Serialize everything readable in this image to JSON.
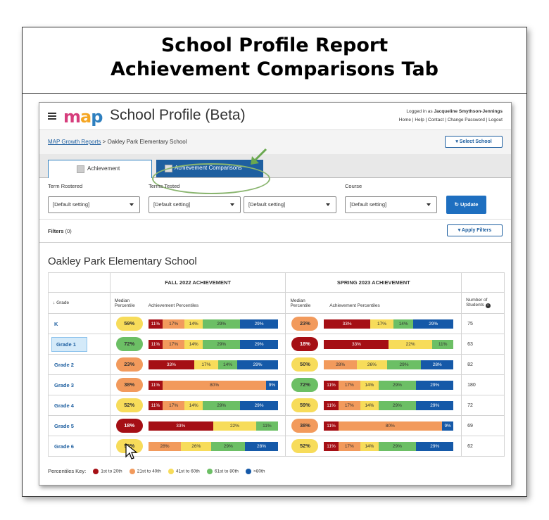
{
  "banner": {
    "line1": "School Profile Report",
    "line2": "Achievement Comparisons Tab"
  },
  "header": {
    "logo": {
      "m": "m",
      "a": "a",
      "p": "p"
    },
    "title": "School Profile (Beta)",
    "logged_in_prefix": "Logged in as",
    "user": "Jacqueline Smythson-Jennings",
    "links": "Home | Help | Contact | Change Password | Logout"
  },
  "breadcrumb": {
    "root": "MAP Growth Reports",
    "sep": ">",
    "current": "Oakley Park Elementary School"
  },
  "select_school_label": "Select School",
  "tabs": {
    "achievement": "Achievement",
    "comparisons": "Achievement Comparisons"
  },
  "filters": {
    "term_rostered_label": "Term Rostered",
    "terms_tested_label": "Terms Tested",
    "course_label": "Course",
    "term_rostered_value": "[Default setting]",
    "terms_tested_1": "[Default setting]",
    "terms_tested_2": "[Default setting]",
    "course_value": "[Default setting]",
    "update_label": "Update",
    "filters_label": "Filters",
    "filters_count": "(0)",
    "apply_label": "Apply Filters"
  },
  "school_name": "Oakley Park Elementary School",
  "table": {
    "fall_header": "FALL 2022 ACHIEVEMENT",
    "spring_header": "SPRING 2023 ACHIEVEMENT",
    "grade_header": "Grade",
    "median_header": "Median Percentile",
    "ach_header": "Achievement Percentiles",
    "num_header": "Number of Students",
    "rows": [
      {
        "grade": "K",
        "fall_median": "59%",
        "fall_bar": [
          11,
          17,
          14,
          29,
          29
        ],
        "spring_median": "23%",
        "spring_bar": [
          33,
          0,
          17,
          14,
          29
        ],
        "n": "75"
      },
      {
        "grade": "Grade 1",
        "fall_median": "72%",
        "fall_bar": [
          11,
          17,
          14,
          29,
          29
        ],
        "spring_median": "18%",
        "spring_bar": [
          33,
          0,
          22,
          11,
          0
        ],
        "n": "63"
      },
      {
        "grade": "Grade 2",
        "fall_median": "23%",
        "fall_bar": [
          33,
          0,
          17,
          14,
          29
        ],
        "spring_median": "50%",
        "spring_bar": [
          0,
          28,
          26,
          29,
          28
        ],
        "n": "82"
      },
      {
        "grade": "Grade 3",
        "fall_median": "38%",
        "fall_bar": [
          11,
          80,
          0,
          0,
          9
        ],
        "spring_median": "72%",
        "spring_bar": [
          11,
          17,
          14,
          29,
          29
        ],
        "n": "180"
      },
      {
        "grade": "Grade 4",
        "fall_median": "52%",
        "fall_bar": [
          11,
          17,
          14,
          29,
          29
        ],
        "spring_median": "59%",
        "spring_bar": [
          11,
          17,
          14,
          29,
          29
        ],
        "n": "72"
      },
      {
        "grade": "Grade 5",
        "fall_median": "18%",
        "fall_bar": [
          33,
          0,
          22,
          11,
          0
        ],
        "spring_median": "38%",
        "spring_bar": [
          11,
          80,
          0,
          0,
          9
        ],
        "n": "69"
      },
      {
        "grade": "Grade 6",
        "fall_median": "50%",
        "fall_bar": [
          0,
          28,
          26,
          29,
          28
        ],
        "spring_median": "52%",
        "spring_bar": [
          11,
          17,
          14,
          29,
          29
        ],
        "n": "62"
      }
    ]
  },
  "key": {
    "label": "Percentiles Key:",
    "items": [
      "1st to 20th",
      "21st to 40th",
      "41st to 60th",
      "61st to 80th",
      ">80th"
    ]
  },
  "colors": {
    "q1": "#a50f15",
    "q2": "#f29a5c",
    "q3": "#f7dc5a",
    "q4": "#6cbf65",
    "q5": "#1559a8",
    "accent": "#1e5fa0",
    "ring": "#8ab56f"
  }
}
